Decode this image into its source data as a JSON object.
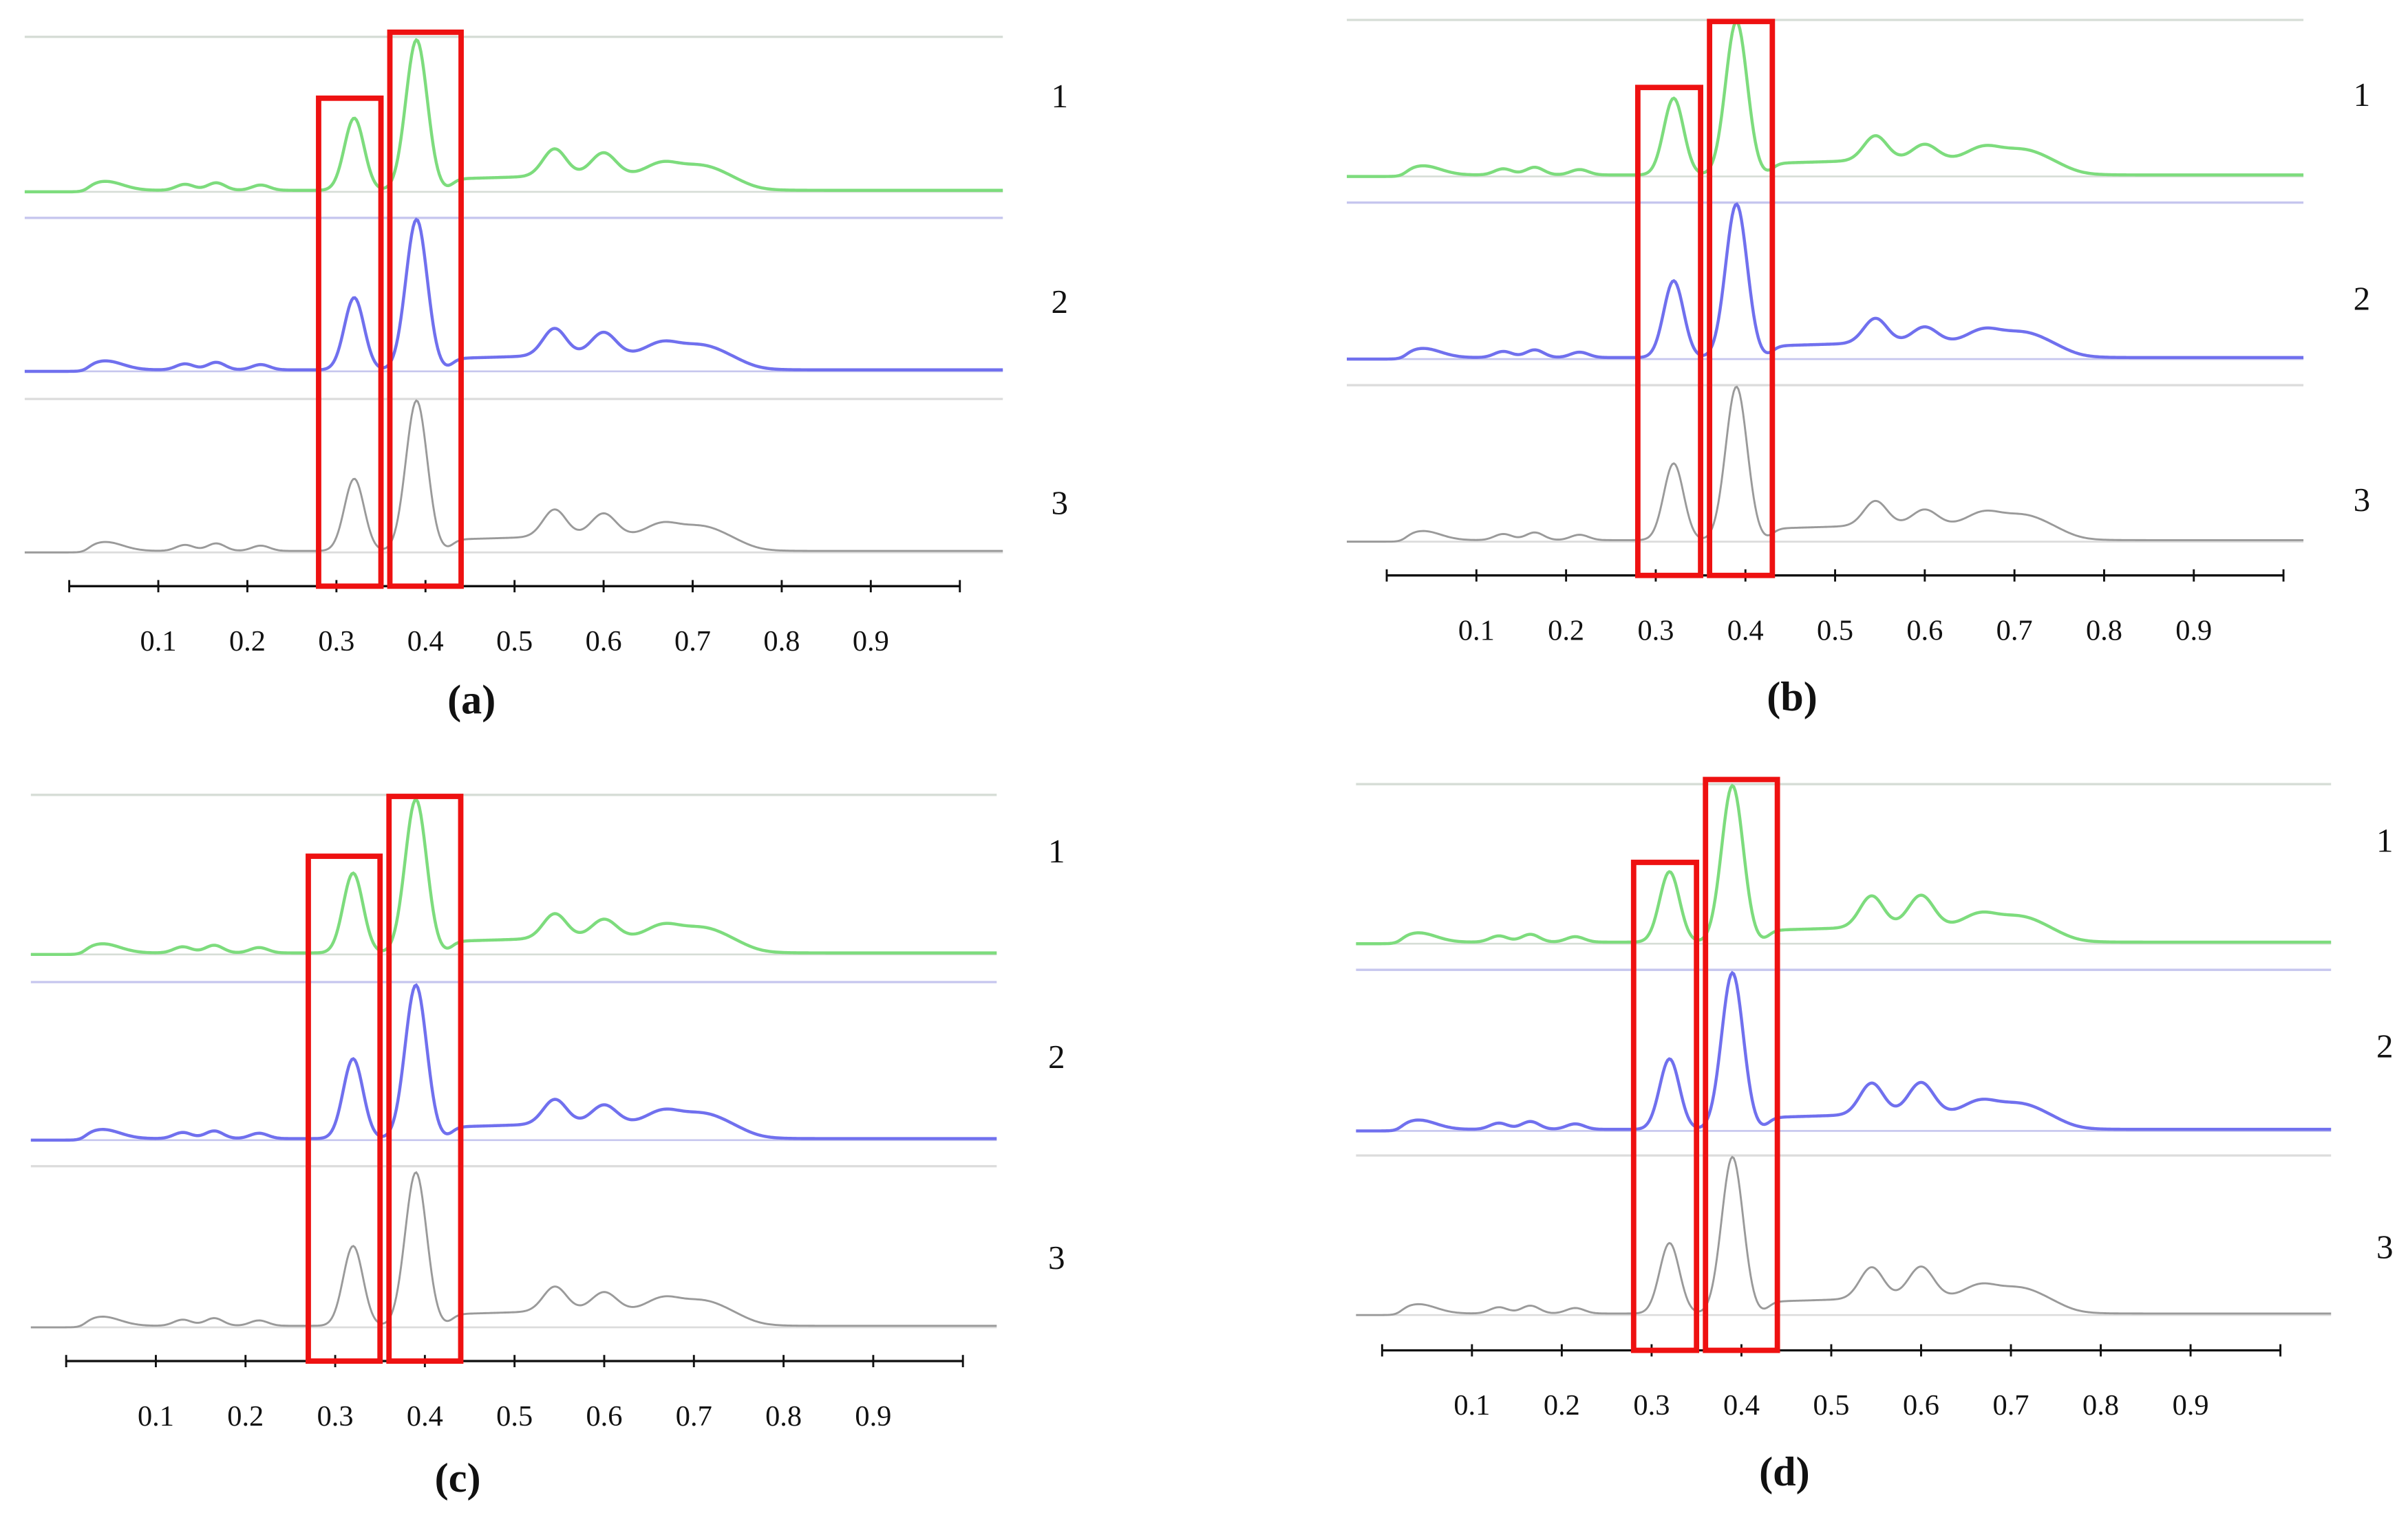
{
  "chart_data": [
    {
      "type": "line",
      "panel_label": "(a)",
      "xlim": [
        0,
        1
      ],
      "x_ticks": [
        "0.1",
        "0.2",
        "0.3",
        "0.4",
        "0.5",
        "0.6",
        "0.7",
        "0.8",
        "0.9"
      ],
      "trace_labels": [
        "1",
        "2",
        "3"
      ],
      "highlight_ranges": [
        [
          0.28,
          0.35
        ],
        [
          0.36,
          0.44
        ]
      ],
      "trace_colors": [
        "#7ddc7d",
        "#7070ee",
        "#9a9a9a"
      ],
      "peak_heights_relative": {
        "0.32": 0.48,
        "0.39": 1.0,
        "0.54": 0.28,
        "0.60": 0.25
      }
    },
    {
      "type": "line",
      "panel_label": "(b)",
      "xlim": [
        0,
        1
      ],
      "x_ticks": [
        "0.1",
        "0.2",
        "0.3",
        "0.4",
        "0.5",
        "0.6",
        "0.7",
        "0.8",
        "0.9"
      ],
      "trace_labels": [
        "1",
        "2",
        "3"
      ],
      "highlight_ranges": [
        [
          0.28,
          0.35
        ],
        [
          0.36,
          0.43
        ]
      ],
      "trace_colors": [
        "#7ddc7d",
        "#7070ee",
        "#9a9a9a"
      ],
      "peak_heights_relative": {
        "0.32": 0.5,
        "0.39": 1.0,
        "0.54": 0.26,
        "0.60": 0.2
      }
    },
    {
      "type": "line",
      "panel_label": "(c)",
      "xlim": [
        0,
        1
      ],
      "x_ticks": [
        "0.1",
        "0.2",
        "0.3",
        "0.4",
        "0.5",
        "0.6",
        "0.7",
        "0.8",
        "0.9"
      ],
      "trace_labels": [
        "1",
        "2",
        "3"
      ],
      "highlight_ranges": [
        [
          0.27,
          0.35
        ],
        [
          0.36,
          0.44
        ]
      ],
      "trace_colors": [
        "#7ddc7d",
        "#7070ee",
        "#9a9a9a"
      ],
      "peak_heights_relative": {
        "0.32": 0.52,
        "0.39": 1.0,
        "0.54": 0.26,
        "0.60": 0.22
      }
    },
    {
      "type": "line",
      "panel_label": "(d)",
      "xlim": [
        0,
        1
      ],
      "x_ticks": [
        "0.1",
        "0.2",
        "0.3",
        "0.4",
        "0.5",
        "0.6",
        "0.7",
        "0.8",
        "0.9"
      ],
      "trace_labels": [
        "1",
        "2",
        "3"
      ],
      "highlight_ranges": [
        [
          0.28,
          0.35
        ],
        [
          0.36,
          0.44
        ]
      ],
      "trace_colors": [
        "#7ddc7d",
        "#7070ee",
        "#9a9a9a"
      ],
      "peak_heights_relative": {
        "0.32": 0.45,
        "0.39": 1.0,
        "0.54": 0.3,
        "0.60": 0.3
      }
    }
  ],
  "colors": {
    "highlight_box": "#ee1111",
    "axis": "#111111"
  }
}
